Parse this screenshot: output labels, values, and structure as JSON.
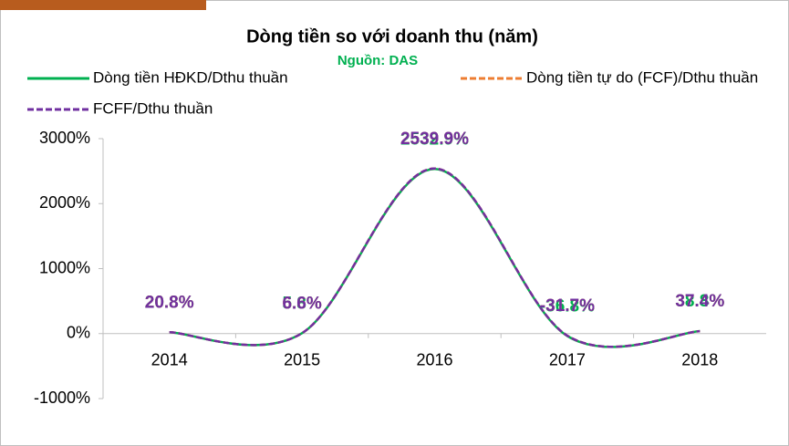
{
  "chart_data": {
    "type": "line",
    "title": "Dòng tiền so với doanh thu (năm)",
    "subtitle": "Nguồn: DAS",
    "categories": [
      "2014",
      "2015",
      "2016",
      "2017",
      "2018"
    ],
    "series": [
      {
        "name": "Dòng tiền HĐKD/Dthu thuần",
        "color": "#00b050",
        "dash": false,
        "values": [
          20.8,
          5.8,
          2532.9,
          -36.8,
          38.8
        ],
        "value_labels": [
          "20.8%",
          "5.8%",
          "2532.9%",
          "-36.8%",
          "38.8%"
        ]
      },
      {
        "name": "Dòng tiền tự do (FCF)/Dthu thuần",
        "color": "#ed7d31",
        "dash": true,
        "values": [
          20.8,
          6.6,
          2539.9,
          -31.7,
          37.4
        ],
        "value_labels": [
          "20.8%",
          "6.6%",
          "2539.9%",
          "-31.7%",
          "37.4%"
        ]
      },
      {
        "name": "FCFF/Dthu thuần",
        "color": "#7030a0",
        "dash": true,
        "values": [
          20.8,
          6.6,
          2539.9,
          -31.7,
          37.4
        ],
        "value_labels": [
          "20.8%",
          "6.6%",
          "2539.9%",
          "-31.7%",
          "37.4%"
        ]
      }
    ],
    "ylim": [
      -1000,
      3000
    ],
    "yticks": [
      {
        "value": -1000,
        "label": "-1000%"
      },
      {
        "value": 0,
        "label": "0%"
      },
      {
        "value": 1000,
        "label": "1000%"
      },
      {
        "value": 2000,
        "label": "2000%"
      },
      {
        "value": 3000,
        "label": "3000%"
      }
    ],
    "smooth": true
  }
}
